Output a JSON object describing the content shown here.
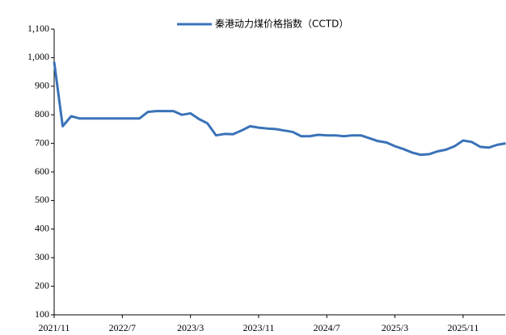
{
  "chart_data": {
    "type": "line",
    "categories": [
      "2021/11",
      "2021/12",
      "2022/1",
      "2022/2",
      "2022/3",
      "2022/4",
      "2022/5",
      "2022/6",
      "2022/7",
      "2022/8",
      "2022/9",
      "2022/10",
      "2022/11",
      "2022/12",
      "2023/1",
      "2023/2",
      "2023/3",
      "2023/4",
      "2023/5",
      "2023/6",
      "2023/7",
      "2023/8",
      "2023/9",
      "2023/10",
      "2023/11",
      "2023/12",
      "2024/1",
      "2024/2",
      "2024/3",
      "2024/4",
      "2024/5",
      "2024/6",
      "2024/7",
      "2024/8",
      "2024/9",
      "2024/10",
      "2024/11",
      "2024/12",
      "2025/1",
      "2025/2",
      "2025/3",
      "2025/4",
      "2025/5",
      "2025/6",
      "2025/7",
      "2025/8",
      "2025/9",
      "2025/10",
      "2025/11",
      "2025/12",
      "2026/1",
      "2026/2",
      "2026/3",
      "2026/4"
    ],
    "xticks": [
      "2021/11",
      "2022/7",
      "2023/3",
      "2023/11",
      "2024/7",
      "2025/3",
      "2025/11"
    ],
    "series": [
      {
        "name": "秦港动力煤价格指数（CCTD）",
        "color": "#3a72b8",
        "values": [
          985,
          760,
          795,
          787,
          787,
          787,
          787,
          787,
          787,
          787,
          787,
          810,
          813,
          813,
          813,
          800,
          805,
          785,
          770,
          728,
          733,
          732,
          745,
          760,
          755,
          752,
          750,
          745,
          740,
          725,
          725,
          730,
          728,
          728,
          725,
          728,
          728,
          718,
          708,
          703,
          690,
          680,
          668,
          660,
          662,
          672,
          678,
          690,
          710,
          705,
          688,
          685,
          695,
          700
        ]
      }
    ],
    "ylim": [
      100,
      1100
    ],
    "yticks": [
      100,
      200,
      300,
      400,
      500,
      600,
      700,
      800,
      900,
      {
        "value": 1000,
        "label": "1,000"
      },
      {
        "value": 1100,
        "label": "1,100"
      }
    ],
    "legend": "top"
  }
}
